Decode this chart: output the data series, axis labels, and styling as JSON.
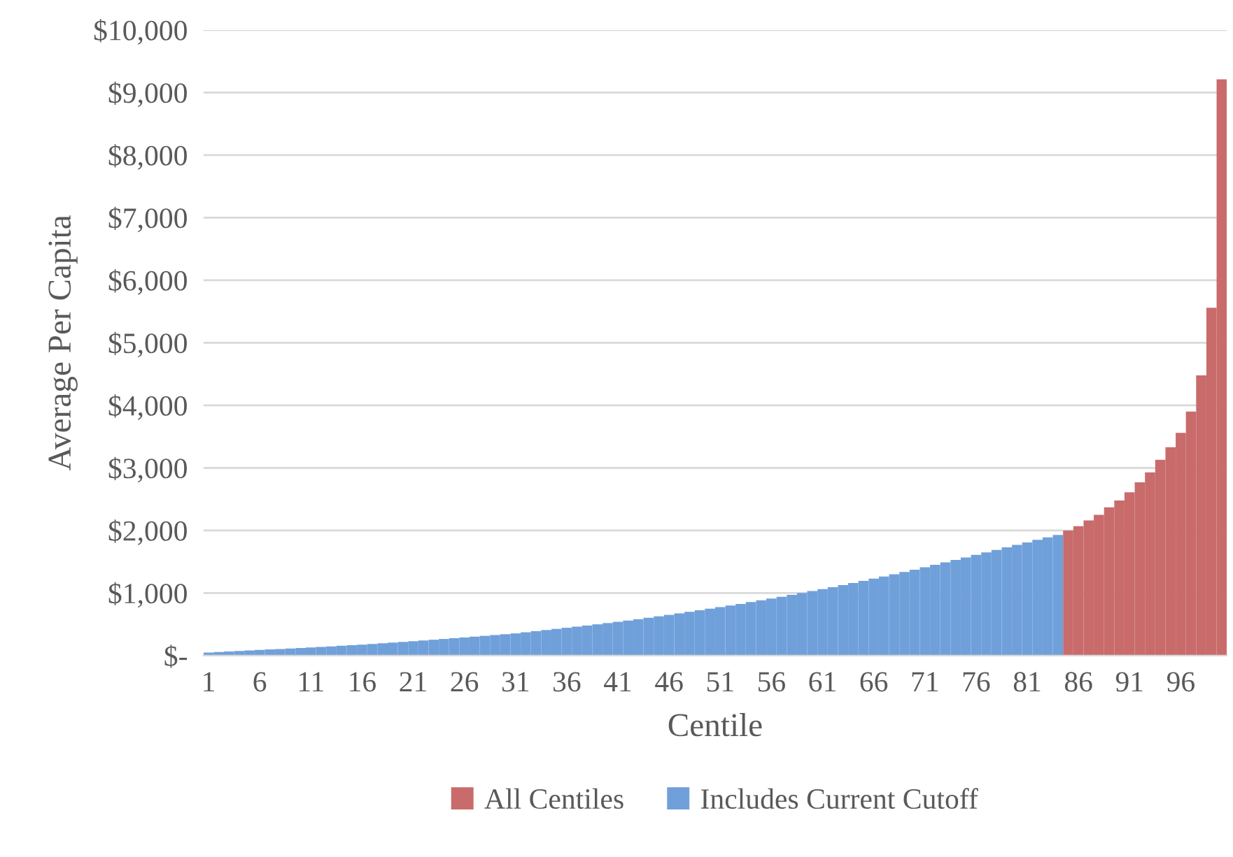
{
  "chart_data": {
    "type": "bar",
    "xlabel": "Centile",
    "ylabel": "Average Per Capita",
    "categories": [
      "1",
      null,
      null,
      null,
      null,
      "6",
      null,
      null,
      null,
      null,
      "11",
      null,
      null,
      null,
      null,
      "16",
      null,
      null,
      null,
      null,
      "21",
      null,
      null,
      null,
      null,
      "26",
      null,
      null,
      null,
      null,
      "31",
      null,
      null,
      null,
      null,
      "36",
      null,
      null,
      null,
      null,
      "41",
      null,
      null,
      null,
      null,
      "46",
      null,
      null,
      null,
      null,
      "51",
      null,
      null,
      null,
      null,
      "56",
      null,
      null,
      null,
      null,
      "61",
      null,
      null,
      null,
      null,
      "66",
      null,
      null,
      null,
      null,
      "71",
      null,
      null,
      null,
      null,
      "76",
      null,
      null,
      null,
      null,
      "81",
      null,
      null,
      null,
      null,
      "86",
      null,
      null,
      null,
      null,
      "91",
      null,
      null,
      null,
      null,
      "96",
      null,
      null,
      null,
      null
    ],
    "series": [
      {
        "name": "All Centiles",
        "color": "#c96b6b",
        "values": [
          null,
          null,
          null,
          null,
          null,
          null,
          null,
          null,
          null,
          null,
          null,
          null,
          null,
          null,
          null,
          null,
          null,
          null,
          null,
          null,
          null,
          null,
          null,
          null,
          null,
          null,
          null,
          null,
          null,
          null,
          null,
          null,
          null,
          null,
          null,
          null,
          null,
          null,
          null,
          null,
          null,
          null,
          null,
          null,
          null,
          null,
          null,
          null,
          null,
          null,
          null,
          null,
          null,
          null,
          null,
          null,
          null,
          null,
          null,
          null,
          null,
          null,
          null,
          null,
          null,
          null,
          null,
          null,
          null,
          null,
          null,
          null,
          null,
          null,
          null,
          null,
          null,
          null,
          null,
          null,
          null,
          null,
          null,
          null,
          2000,
          2070,
          2160,
          2250,
          2370,
          2480,
          2610,
          2770,
          2930,
          3130,
          3330,
          3560,
          3900,
          4480,
          5560,
          9210
        ]
      },
      {
        "name": "Includes Current Cutoff",
        "color": "#70a0da",
        "values": [
          50,
          58,
          66,
          74,
          82,
          90,
          98,
          106,
          114,
          122,
          130,
          139,
          148,
          157,
          166,
          175,
          186,
          197,
          208,
          219,
          230,
          242,
          254,
          266,
          278,
          290,
          303,
          316,
          329,
          342,
          355,
          373,
          391,
          409,
          427,
          445,
          463,
          481,
          500,
          520,
          540,
          560,
          582,
          605,
          628,
          651,
          675,
          700,
          725,
          750,
          775,
          800,
          827,
          855,
          883,
          912,
          941,
          971,
          1001,
          1032,
          1063,
          1095,
          1128,
          1161,
          1195,
          1230,
          1265,
          1300,
          1336,
          1373,
          1411,
          1450,
          1490,
          1530,
          1570,
          1610,
          1650,
          1690,
          1730,
          1770,
          1810,
          1850,
          1890,
          1930,
          null,
          null,
          null,
          null,
          null,
          null,
          null,
          null,
          null,
          null,
          null,
          null,
          null,
          null,
          null,
          null
        ]
      }
    ],
    "ylim": [
      0,
      10000
    ],
    "yticks": [
      {
        "value": 0,
        "label": "$-"
      },
      {
        "value": 1000,
        "label": "$1,000"
      },
      {
        "value": 2000,
        "label": "$2,000"
      },
      {
        "value": 3000,
        "label": "$3,000"
      },
      {
        "value": 4000,
        "label": "$4,000"
      },
      {
        "value": 5000,
        "label": "$5,000"
      },
      {
        "value": 6000,
        "label": "$6,000"
      },
      {
        "value": 7000,
        "label": "$7,000"
      },
      {
        "value": 8000,
        "label": "$8,000"
      },
      {
        "value": 9000,
        "label": "$9,000"
      },
      {
        "value": 10000,
        "label": "$10,000"
      }
    ],
    "grid": "y",
    "legend": "bottom"
  }
}
